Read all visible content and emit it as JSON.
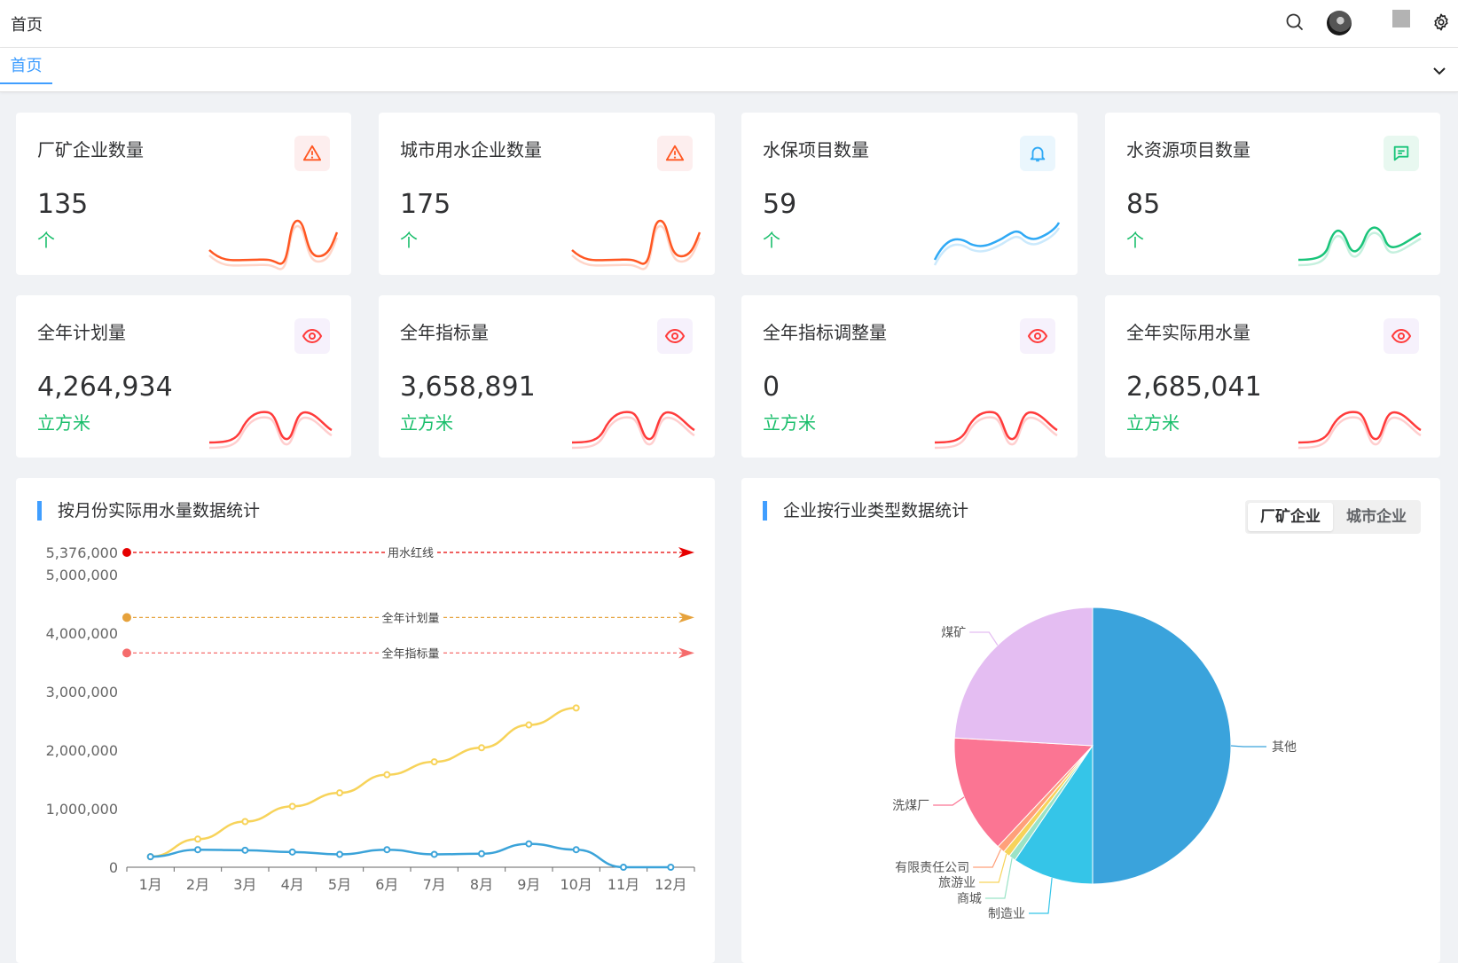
{
  "header": {
    "breadcrumb": "首页"
  },
  "tabs": [
    {
      "label": "首页"
    }
  ],
  "colors": {
    "accent": "#409eff",
    "green": "#19be6b",
    "orange": "#ff5722",
    "blue": "#2fa9f5",
    "teal": "#19c47a",
    "red": "#ff3b3b"
  },
  "stats": [
    {
      "title": "厂矿企业数量",
      "value": "135",
      "unit": "个",
      "icon": "warning-icon"
    },
    {
      "title": "城市用水企业数量",
      "value": "175",
      "unit": "个",
      "icon": "warning-icon"
    },
    {
      "title": "水保项目数量",
      "value": "59",
      "unit": "个",
      "icon": "bell-icon"
    },
    {
      "title": "水资源项目数量",
      "value": "85",
      "unit": "个",
      "icon": "message-icon"
    },
    {
      "title": "全年计划量",
      "value": "4,264,934",
      "unit": "立方米",
      "icon": "eye-icon"
    },
    {
      "title": "全年指标量",
      "value": "3,658,891",
      "unit": "立方米",
      "icon": "eye-icon"
    },
    {
      "title": "全年指标调整量",
      "value": "0",
      "unit": "立方米",
      "icon": "eye-icon"
    },
    {
      "title": "全年实际用水量",
      "value": "2,685,041",
      "unit": "立方米",
      "icon": "eye-icon"
    }
  ],
  "panels": {
    "line": {
      "title": "按月份实际用水量数据统计"
    },
    "pie": {
      "title": "企业按行业类型数据统计",
      "toggle": [
        "厂矿企业",
        "城市企业"
      ]
    }
  },
  "chart_data": [
    {
      "type": "line",
      "title": "按月份实际用水量数据统计",
      "categories": [
        "1月",
        "2月",
        "3月",
        "4月",
        "5月",
        "6月",
        "7月",
        "8月",
        "9月",
        "10月",
        "11月",
        "12月"
      ],
      "y_ticks": [
        "0",
        "1,000,000",
        "2,000,000",
        "3,000,000",
        "4,000,000",
        "5,000,000"
      ],
      "ylim": [
        0,
        5376000
      ],
      "series": [
        {
          "values": [
            180000,
            480000,
            780000,
            1040000,
            1270000,
            1580000,
            1800000,
            2040000,
            2430000,
            2720000,
            null,
            null
          ],
          "color": "#f7d35a"
        },
        {
          "values": [
            180000,
            300000,
            290000,
            260000,
            220000,
            300000,
            220000,
            230000,
            400000,
            300000,
            0,
            0
          ],
          "color": "#3ba3d9"
        }
      ],
      "mark_lines": [
        {
          "name": "用水红线",
          "value": 5376000,
          "value_label": "5,376,000",
          "color": "#e60000"
        },
        {
          "name": "全年计划量",
          "value": 4264934,
          "color": "#e6a23c"
        },
        {
          "name": "全年指标量",
          "value": 3658891,
          "color": "#f56c6c"
        }
      ],
      "grid": false
    },
    {
      "type": "pie",
      "title": "企业按行业类型数据统计",
      "slices": [
        {
          "name": "其他",
          "value": 50.0,
          "color": "#3aa3dc"
        },
        {
          "name": "制造业",
          "value": 9.5,
          "color": "#35c5e8"
        },
        {
          "name": "商城",
          "value": 0.8,
          "color": "#9be3c6"
        },
        {
          "name": "旅游业",
          "value": 0.8,
          "color": "#f7d35a"
        },
        {
          "name": "有限责任公司",
          "value": 0.9,
          "color": "#ffa07a"
        },
        {
          "name": "洗煤厂",
          "value": 13.9,
          "color": "#fb7593"
        },
        {
          "name": "煤矿",
          "value": 24.1,
          "color": "#e4bdf2"
        }
      ]
    }
  ]
}
